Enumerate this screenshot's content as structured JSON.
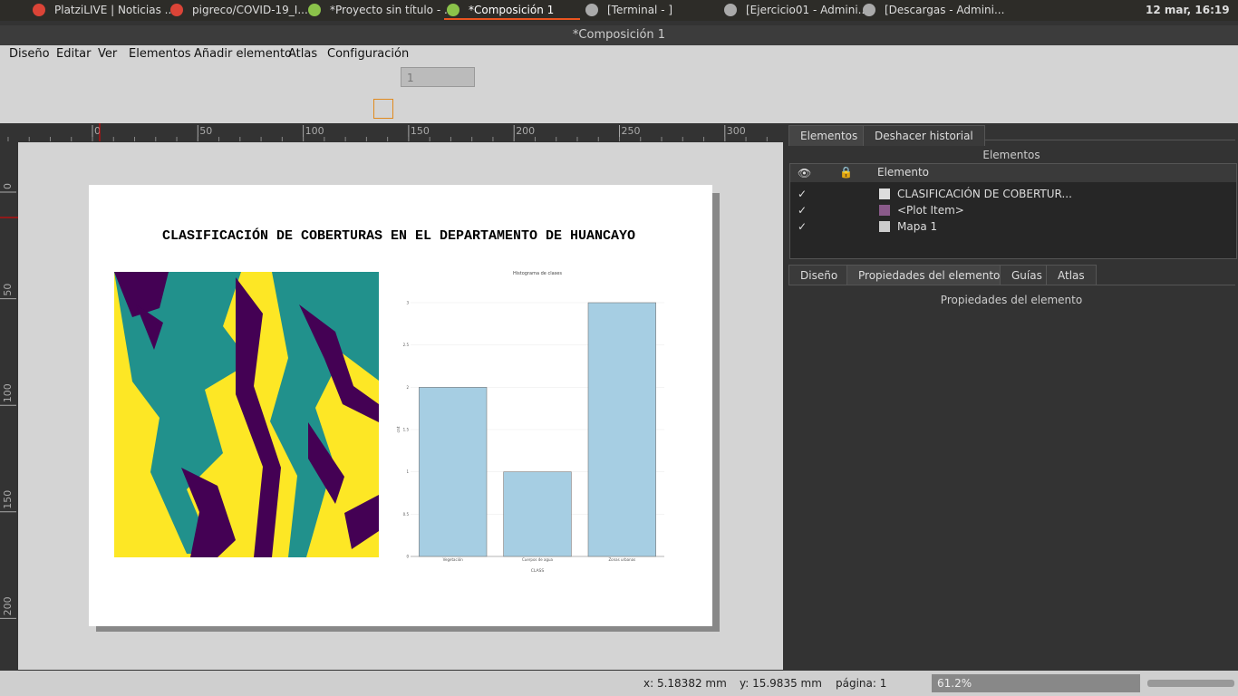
{
  "taskbar": {
    "items": [
      "PlatziLIVE | Noticias ...",
      "pigreco/COVID-19_I...",
      "*Proyecto sin título - ...",
      "*Composición 1",
      "[Terminal - ]",
      "[Ejercicio01 - Admini...",
      "[Descargas - Admini..."
    ],
    "clock": "12 mar, 16:19"
  },
  "window": {
    "title": "*Composición 1",
    "menu": [
      "Diseño",
      "Editar",
      "Ver",
      "Elementos",
      "Añadir elemento",
      "Atlas",
      "Configuración"
    ]
  },
  "toolbar": {
    "page": "1"
  },
  "ruler": {
    "h": [
      "0",
      "50",
      "100",
      "150",
      "200",
      "250",
      "300"
    ],
    "v": [
      "0",
      "50",
      "100",
      "150",
      "200"
    ]
  },
  "layout": {
    "title": "CLASIFICACIÓN DE COBERTURAS EN EL DEPARTAMENTO DE HUANCAYO"
  },
  "chart_data": {
    "type": "bar",
    "title": "Histograma de clases",
    "categories": [
      "Vegetación",
      "Cuerpos de agua",
      "Zonas urbanas"
    ],
    "values": [
      2,
      1,
      3
    ],
    "color": "#a6cee3",
    "ylim": [
      0,
      3
    ],
    "yticks": [
      0,
      0.5,
      1,
      1.5,
      2,
      2.5,
      3
    ],
    "grid": true,
    "x_label": "CLASS",
    "y_label": "cnt"
  },
  "panel": {
    "tabs": [
      "Elementos",
      "Deshacer historial"
    ],
    "heading": "Elementos",
    "column": "Elemento",
    "items": [
      {
        "check": "✓",
        "name": "CLASIFICACIÓN DE COBERTUR..."
      },
      {
        "check": "✓",
        "name": "<Plot Item>"
      },
      {
        "check": "✓",
        "name": "Mapa 1"
      }
    ],
    "tabs2": [
      "Diseño",
      "Propiedades del elemento",
      "Guías",
      "Atlas"
    ],
    "heading2": "Propiedades del elemento"
  },
  "status": {
    "x": "x: 5.18382 mm",
    "y": "y: 15.9835 mm",
    "page": "página: 1",
    "zoom": "61.2%"
  }
}
